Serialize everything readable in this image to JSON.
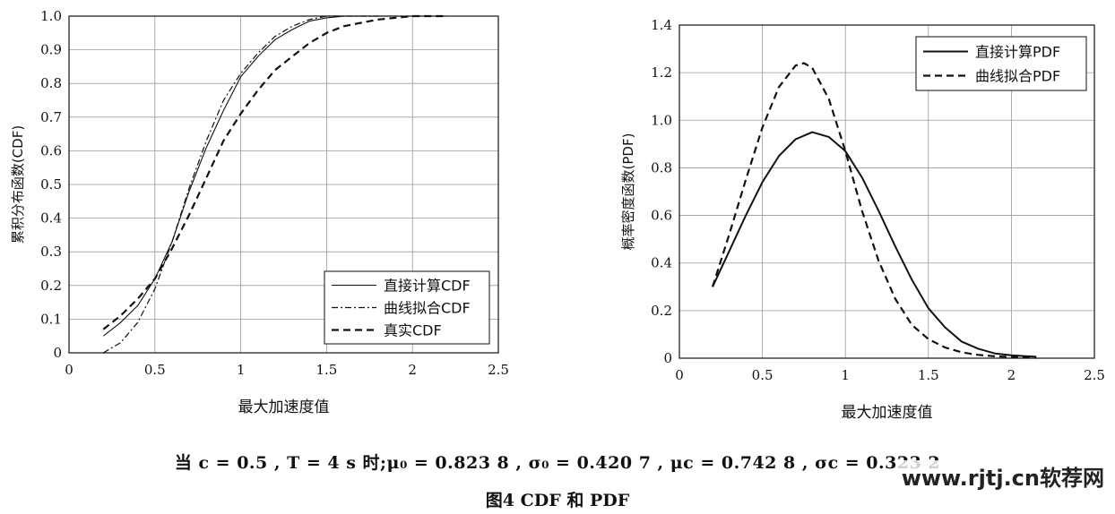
{
  "chart_data": [
    {
      "type": "line",
      "ylabel": "累积分布函数(CDF)",
      "xlabel": "最大加速度值",
      "xlim": [
        0,
        2.5
      ],
      "ylim": [
        0,
        1.0
      ],
      "xticks": [
        "0",
        "0.5",
        "1",
        "1.5",
        "2",
        "2.5"
      ],
      "yticks": [
        "0",
        "0.1",
        "0.2",
        "0.3",
        "0.4",
        "0.5",
        "0.6",
        "0.7",
        "0.8",
        "0.9",
        "1.0"
      ],
      "grid": true,
      "legend_position": "lower-right",
      "series": [
        {
          "name": "直接计算CDF",
          "style": "solid-thin",
          "x": [
            0.2,
            0.3,
            0.4,
            0.5,
            0.6,
            0.7,
            0.8,
            0.9,
            1.0,
            1.1,
            1.2,
            1.3,
            1.4,
            1.5,
            1.6,
            1.7,
            1.8,
            1.9,
            2.0,
            2.1,
            2.2
          ],
          "y": [
            0.05,
            0.09,
            0.14,
            0.22,
            0.33,
            0.48,
            0.61,
            0.72,
            0.82,
            0.88,
            0.93,
            0.96,
            0.985,
            0.995,
            1.0,
            1.0,
            1.0,
            1.0,
            1.0,
            1.0,
            1.0
          ]
        },
        {
          "name": "曲线拟合CDF",
          "style": "dashdot",
          "x": [
            0.2,
            0.3,
            0.4,
            0.5,
            0.6,
            0.7,
            0.8,
            0.9,
            1.0,
            1.1,
            1.2,
            1.3,
            1.4,
            1.5,
            1.6,
            1.7,
            1.8
          ],
          "y": [
            0.0,
            0.03,
            0.09,
            0.19,
            0.33,
            0.49,
            0.63,
            0.75,
            0.83,
            0.89,
            0.94,
            0.97,
            0.99,
            1.0,
            1.0,
            1.0,
            1.0
          ]
        },
        {
          "name": "真实CDF",
          "style": "dashed",
          "x": [
            0.2,
            0.3,
            0.4,
            0.5,
            0.6,
            0.7,
            0.8,
            0.9,
            1.0,
            1.1,
            1.2,
            1.3,
            1.4,
            1.5,
            1.6,
            1.7,
            1.8,
            1.9,
            2.0,
            2.1,
            2.2
          ],
          "y": [
            0.07,
            0.11,
            0.16,
            0.22,
            0.31,
            0.41,
            0.52,
            0.63,
            0.71,
            0.78,
            0.84,
            0.88,
            0.92,
            0.95,
            0.97,
            0.98,
            0.99,
            0.995,
            1.0,
            1.0,
            1.0
          ]
        }
      ]
    },
    {
      "type": "line",
      "ylabel": "概率密度函数(PDF)",
      "xlabel": "最大加速度值",
      "xlim": [
        0,
        2.5
      ],
      "ylim": [
        0,
        1.4
      ],
      "xticks": [
        "0",
        "0.5",
        "1",
        "1.5",
        "2",
        "2.5"
      ],
      "yticks": [
        "0",
        "0.2",
        "0.4",
        "0.6",
        "0.8",
        "1.0",
        "1.2",
        "1.4"
      ],
      "grid": true,
      "legend_position": "top-right",
      "series": [
        {
          "name": "直接计算PDF",
          "style": "solid",
          "x": [
            0.2,
            0.3,
            0.4,
            0.5,
            0.6,
            0.7,
            0.8,
            0.9,
            1.0,
            1.1,
            1.2,
            1.3,
            1.4,
            1.5,
            1.6,
            1.7,
            1.8,
            1.9,
            2.0,
            2.1,
            2.15
          ],
          "y": [
            0.3,
            0.45,
            0.6,
            0.74,
            0.85,
            0.92,
            0.95,
            0.93,
            0.87,
            0.76,
            0.62,
            0.47,
            0.33,
            0.21,
            0.13,
            0.07,
            0.04,
            0.02,
            0.012,
            0.008,
            0.006
          ]
        },
        {
          "name": "曲线拟合PDF",
          "style": "dashed",
          "x": [
            0.2,
            0.3,
            0.4,
            0.5,
            0.6,
            0.7,
            0.75,
            0.8,
            0.9,
            1.0,
            1.1,
            1.2,
            1.3,
            1.4,
            1.5,
            1.6,
            1.7,
            1.8,
            1.9,
            2.0,
            2.1,
            2.15
          ],
          "y": [
            0.3,
            0.52,
            0.75,
            0.97,
            1.14,
            1.23,
            1.24,
            1.22,
            1.09,
            0.87,
            0.62,
            0.41,
            0.25,
            0.14,
            0.08,
            0.045,
            0.025,
            0.014,
            0.008,
            0.005,
            0.003,
            0.002
          ]
        }
      ]
    }
  ],
  "caption": {
    "conditions": "当 c = 0.5 , T = 4 s 时;μ₀ = 0.823 8 , σ₀ = 0.420 7 , μc = 0.742 8 , σc = 0.323 2",
    "figure_label": "图4   CDF 和 PDF"
  },
  "watermark": "www.rjtj.cn软荐网"
}
